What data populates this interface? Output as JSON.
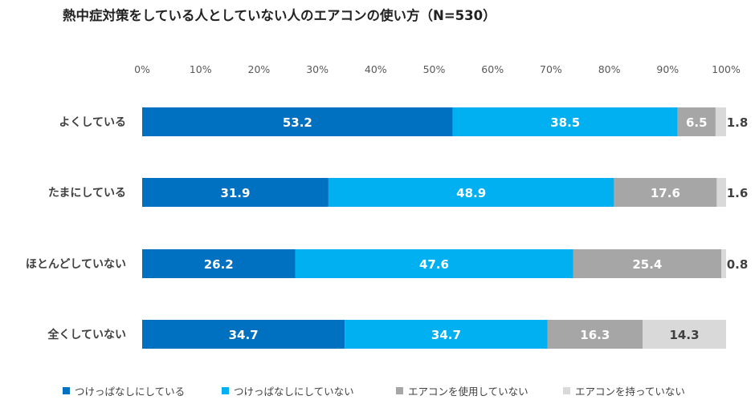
{
  "chart_data": {
    "type": "bar",
    "orientation": "horizontal",
    "stacked": true,
    "title": "熱中症対策をしている人としていない人のエアコンの使い方（N=530）",
    "categories": [
      "よくしている",
      "たまにしている",
      "ほとんどしていない",
      "全くしていない"
    ],
    "x_ticks": [
      "0%",
      "10%",
      "20%",
      "30%",
      "40%",
      "50%",
      "60%",
      "70%",
      "80%",
      "90%",
      "100%"
    ],
    "xlim": [
      0,
      100
    ],
    "grid": false,
    "legend_position": "bottom",
    "series": [
      {
        "name": "つけっぱなしにしている",
        "color": "#0070c0",
        "label_color": "#ffffff",
        "values": [
          53.2,
          31.9,
          26.2,
          34.7
        ],
        "labels": [
          "53.2",
          "31.9",
          "26.2",
          "34.7"
        ]
      },
      {
        "name": "つけっぱなしにしていない",
        "color": "#00b0f0",
        "label_color": "#ffffff",
        "values": [
          38.5,
          48.9,
          47.6,
          34.7
        ],
        "labels": [
          "38.5",
          "48.9",
          "47.6",
          "34.7"
        ]
      },
      {
        "name": "エアコンを使用していない",
        "color": "#a6a6a6",
        "label_color": "#ffffff",
        "values": [
          6.5,
          17.6,
          25.4,
          16.3
        ],
        "labels": [
          "6.5",
          "17.6",
          "25.4",
          "16.3"
        ]
      },
      {
        "name": "エアコンを持っていない",
        "color": "#d9d9d9",
        "label_color": "#404040",
        "values": [
          1.8,
          1.6,
          0.8,
          14.3
        ],
        "labels": [
          "1.8",
          "1.6",
          "0.8",
          "14.3"
        ]
      }
    ]
  }
}
